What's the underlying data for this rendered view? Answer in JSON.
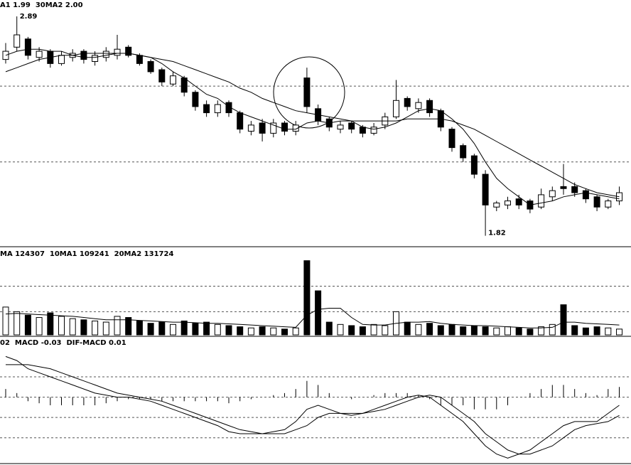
{
  "chart_data": [
    {
      "type": "candlestick",
      "title": "A1 1.99  30MA2 2.00",
      "open": [
        2.68,
        2.74,
        2.78,
        2.69,
        2.72,
        2.66,
        2.69,
        2.72,
        2.67,
        2.69,
        2.7,
        2.74,
        2.7,
        2.67,
        2.63,
        2.56,
        2.59,
        2.52,
        2.46,
        2.42,
        2.47,
        2.42,
        2.33,
        2.37,
        2.32,
        2.37,
        2.33,
        2.59,
        2.44,
        2.39,
        2.34,
        2.37,
        2.35,
        2.32,
        2.36,
        2.4,
        2.49,
        2.44,
        2.48,
        2.43,
        2.34,
        2.26,
        2.21,
        2.12,
        1.96,
        1.97,
        2.0,
        1.99,
        1.96,
        2.01,
        2.06,
        2.06,
        2.04,
        2.01,
        1.96,
        1.99
      ],
      "high": [
        2.76,
        2.89,
        2.79,
        2.74,
        2.73,
        2.72,
        2.73,
        2.73,
        2.72,
        2.74,
        2.8,
        2.75,
        2.71,
        2.68,
        2.64,
        2.62,
        2.6,
        2.53,
        2.48,
        2.48,
        2.48,
        2.43,
        2.38,
        2.39,
        2.39,
        2.38,
        2.38,
        2.64,
        2.46,
        2.4,
        2.38,
        2.38,
        2.36,
        2.37,
        2.42,
        2.58,
        2.5,
        2.49,
        2.49,
        2.44,
        2.35,
        2.27,
        2.22,
        2.14,
        1.99,
        2.01,
        2.02,
        2.0,
        2.05,
        2.06,
        2.17,
        2.08,
        2.05,
        2.02,
        2.0,
        2.06
      ],
      "low": [
        2.66,
        2.72,
        2.68,
        2.67,
        2.64,
        2.65,
        2.67,
        2.66,
        2.65,
        2.67,
        2.68,
        2.69,
        2.65,
        2.61,
        2.55,
        2.55,
        2.5,
        2.43,
        2.4,
        2.4,
        2.4,
        2.32,
        2.31,
        2.28,
        2.3,
        2.31,
        2.31,
        2.42,
        2.36,
        2.33,
        2.32,
        2.32,
        2.3,
        2.31,
        2.34,
        2.39,
        2.43,
        2.42,
        2.4,
        2.33,
        2.23,
        2.18,
        2.1,
        1.82,
        1.94,
        1.95,
        1.95,
        1.93,
        1.95,
        1.99,
        2.02,
        2.01,
        1.98,
        1.94,
        1.95,
        1.97
      ],
      "close": [
        2.72,
        2.8,
        2.7,
        2.72,
        2.66,
        2.7,
        2.71,
        2.68,
        2.7,
        2.72,
        2.73,
        2.7,
        2.66,
        2.62,
        2.57,
        2.6,
        2.52,
        2.45,
        2.42,
        2.46,
        2.42,
        2.34,
        2.36,
        2.32,
        2.37,
        2.33,
        2.36,
        2.45,
        2.38,
        2.35,
        2.36,
        2.34,
        2.32,
        2.35,
        2.4,
        2.48,
        2.45,
        2.47,
        2.42,
        2.35,
        2.25,
        2.2,
        2.12,
        1.97,
        1.98,
        1.99,
        1.97,
        1.95,
        2.02,
        2.04,
        2.05,
        2.03,
        2.0,
        1.96,
        1.99,
        2.03
      ],
      "lines": [
        {
          "color": "#000000",
          "values": [
            2.7,
            2.72,
            2.73,
            2.73,
            2.72,
            2.72,
            2.7,
            2.69,
            2.69,
            2.7,
            2.71,
            2.71,
            2.7,
            2.69,
            2.66,
            2.62,
            2.59,
            2.55,
            2.51,
            2.49,
            2.45,
            2.42,
            2.4,
            2.38,
            2.36,
            2.34,
            2.34,
            2.37,
            2.38,
            2.37,
            2.38,
            2.38,
            2.35,
            2.34,
            2.35,
            2.37,
            2.4,
            2.43,
            2.44,
            2.43,
            2.39,
            2.34,
            2.27,
            2.18,
            2.1,
            2.05,
            2.01,
            1.97,
            1.98,
            1.99,
            2.01,
            2.02,
            2.03,
            2.02,
            2.01,
            2.0
          ]
        },
        {
          "color": "#000000",
          "values": [
            2.62,
            2.64,
            2.66,
            2.68,
            2.69,
            2.7,
            2.7,
            2.71,
            2.71,
            2.71,
            2.71,
            2.71,
            2.7,
            2.69,
            2.68,
            2.67,
            2.65,
            2.63,
            2.61,
            2.59,
            2.57,
            2.54,
            2.52,
            2.49,
            2.47,
            2.45,
            2.43,
            2.42,
            2.41,
            2.4,
            2.39,
            2.38,
            2.38,
            2.38,
            2.38,
            2.38,
            2.39,
            2.39,
            2.39,
            2.39,
            2.38,
            2.36,
            2.34,
            2.31,
            2.28,
            2.25,
            2.22,
            2.19,
            2.16,
            2.13,
            2.1,
            2.07,
            2.05,
            2.03,
            2.02,
            2.01
          ]
        }
      ],
      "annotations": [
        {
          "label": "2.89",
          "value": 2.89
        },
        {
          "label": "1.82",
          "value": 1.82
        }
      ],
      "ylim": [
        1.77,
        2.97
      ],
      "yticks": [
        2.18,
        2.55
      ],
      "grid": true
    },
    {
      "type": "bar",
      "title": "MA 124307  10MA1 109241  20MA2 131724",
      "values": [
        240000,
        200000,
        170000,
        150000,
        190000,
        160000,
        140000,
        130000,
        120000,
        110000,
        160000,
        150000,
        120000,
        100000,
        110000,
        90000,
        120000,
        100000,
        110000,
        90000,
        80000,
        70000,
        60000,
        70000,
        60000,
        50000,
        60000,
        640000,
        380000,
        110000,
        90000,
        80000,
        70000,
        90000,
        80000,
        200000,
        110000,
        90000,
        100000,
        80000,
        90000,
        70000,
        80000,
        70000,
        60000,
        70000,
        60000,
        50000,
        70000,
        90000,
        260000,
        80000,
        60000,
        70000,
        60000,
        50000
      ],
      "lines": [
        {
          "color": "#000000",
          "values": [
            180000,
            185000,
            180000,
            175000,
            170000,
            165000,
            160000,
            150000,
            140000,
            130000,
            130000,
            130000,
            125000,
            120000,
            115000,
            110000,
            110000,
            105000,
            100000,
            100000,
            95000,
            90000,
            85000,
            80000,
            75000,
            70000,
            65000,
            170000,
            220000,
            230000,
            230000,
            150000,
            90000,
            85000,
            85000,
            100000,
            110000,
            110000,
            115000,
            100000,
            90000,
            85000,
            80000,
            80000,
            75000,
            70000,
            65000,
            60000,
            60000,
            65000,
            110000,
            110000,
            100000,
            95000,
            90000,
            85000
          ]
        }
      ],
      "ylim": [
        0,
        650000
      ],
      "yticks": [
        200000,
        420000
      ],
      "grid": true
    },
    {
      "type": "macd",
      "title": "02  MACD -0.03  DIF-MACD 0.01",
      "hist": [
        0.02,
        0.01,
        -0.01,
        -0.015,
        -0.02,
        -0.02,
        -0.02,
        -0.02,
        -0.02,
        -0.015,
        -0.01,
        -0.005,
        -0.005,
        -0.005,
        -0.01,
        -0.01,
        -0.01,
        -0.01,
        -0.01,
        -0.01,
        -0.015,
        -0.01,
        -0.005,
        0.0,
        0.005,
        0.01,
        0.02,
        0.04,
        0.03,
        0.01,
        0.0,
        -0.005,
        0.0,
        0.005,
        0.01,
        0.01,
        0.01,
        0.005,
        -0.005,
        -0.02,
        -0.02,
        -0.02,
        -0.03,
        -0.03,
        -0.03,
        -0.02,
        0.0,
        0.01,
        0.02,
        0.03,
        0.03,
        0.02,
        0.01,
        0.005,
        0.02,
        0.025
      ],
      "lines": [
        {
          "color": "#000000",
          "values": [
            0.1,
            0.09,
            0.07,
            0.06,
            0.05,
            0.04,
            0.03,
            0.02,
            0.01,
            0.005,
            0.0,
            0.0,
            -0.005,
            -0.01,
            -0.02,
            -0.03,
            -0.04,
            -0.05,
            -0.06,
            -0.07,
            -0.085,
            -0.09,
            -0.09,
            -0.09,
            -0.085,
            -0.08,
            -0.06,
            -0.03,
            -0.02,
            -0.03,
            -0.04,
            -0.045,
            -0.04,
            -0.03,
            -0.02,
            -0.01,
            0.0,
            0.005,
            0.0,
            -0.02,
            -0.04,
            -0.06,
            -0.09,
            -0.12,
            -0.14,
            -0.15,
            -0.14,
            -0.13,
            -0.11,
            -0.09,
            -0.07,
            -0.06,
            -0.06,
            -0.06,
            -0.04,
            -0.02
          ]
        },
        {
          "color": "#000000",
          "values": [
            0.08,
            0.08,
            0.08,
            0.075,
            0.07,
            0.06,
            0.05,
            0.04,
            0.03,
            0.02,
            0.01,
            0.005,
            0.0,
            -0.005,
            -0.01,
            -0.02,
            -0.03,
            -0.04,
            -0.05,
            -0.06,
            -0.07,
            -0.08,
            -0.085,
            -0.09,
            -0.09,
            -0.09,
            -0.08,
            -0.07,
            -0.05,
            -0.04,
            -0.04,
            -0.04,
            -0.04,
            -0.035,
            -0.03,
            -0.02,
            -0.01,
            0.0,
            0.005,
            0.0,
            -0.02,
            -0.04,
            -0.06,
            -0.09,
            -0.11,
            -0.13,
            -0.14,
            -0.14,
            -0.13,
            -0.12,
            -0.1,
            -0.08,
            -0.07,
            -0.065,
            -0.06,
            -0.045
          ]
        }
      ],
      "ylim": [
        -0.16,
        0.12
      ],
      "yticks": [
        -0.1,
        -0.05,
        0,
        0.05
      ],
      "grid": true
    }
  ]
}
